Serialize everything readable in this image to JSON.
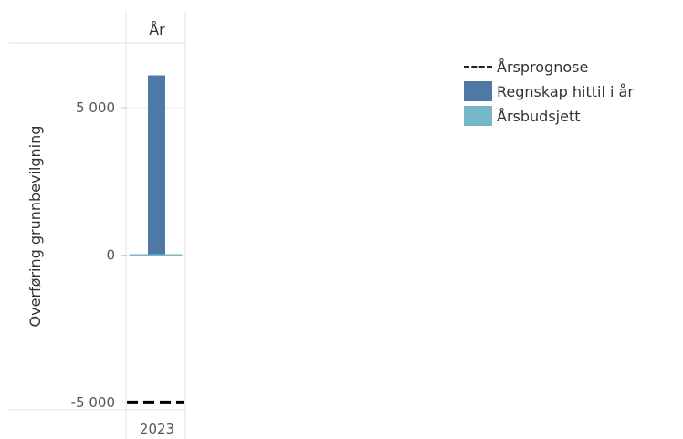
{
  "chart_data": {
    "type": "bar",
    "header": "År",
    "categories": [
      "2023"
    ],
    "ylabel": "Overføring grunnbevilgning",
    "ylim": [
      -5250,
      7200
    ],
    "yticks": [
      {
        "value": 5000,
        "label": "5 000"
      },
      {
        "value": 0,
        "label": "0"
      },
      {
        "value": -5000,
        "label": "-5 000"
      }
    ],
    "grid": true,
    "legend_position": "right",
    "series": [
      {
        "name": "Årsprognose",
        "type": "dashed-line",
        "color": "#000000",
        "values": [
          -5000
        ]
      },
      {
        "name": "Regnskap hittil i år",
        "type": "bar",
        "color": "#4e79a7",
        "values": [
          6100
        ]
      },
      {
        "name": "Årsbudsjett",
        "type": "bar",
        "color": "#76b7c8",
        "values": [
          0
        ]
      }
    ]
  }
}
